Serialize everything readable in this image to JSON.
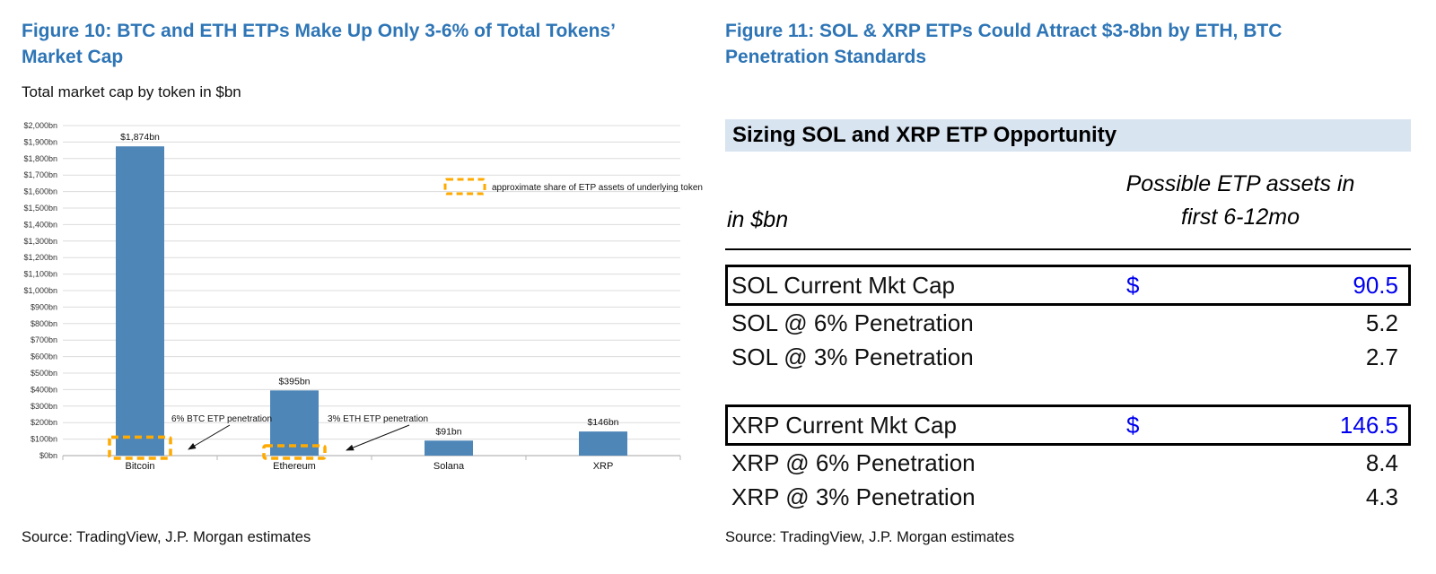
{
  "figure10": {
    "title_line1": "Figure 10: BTC and ETH ETPs Make Up Only 3-6% of Total Tokens’",
    "title_line2": "Market Cap",
    "subtitle": "Total market cap by token in $bn",
    "source": "Source: TradingView, J.P. Morgan estimates"
  },
  "figure11": {
    "title_line1": "Figure 11: SOL & XRP ETPs Could Attract $3-8bn by ETH, BTC",
    "title_line2": "Penetration Standards",
    "source": "Source: TradingView, J.P. Morgan estimates",
    "table": {
      "title": "Sizing SOL and XRP ETP Opportunity",
      "col_left_header": "in $bn",
      "col_right_header_line1": "Possible ETP assets in",
      "col_right_header_line2": "first 6-12mo",
      "sections": [
        {
          "rows": [
            {
              "label": "SOL Current Mkt Cap",
              "currency": "$",
              "value": "90.5",
              "boxed": true,
              "blue": true
            },
            {
              "label": "SOL @ 6% Penetration",
              "currency": "",
              "value": "5.2"
            },
            {
              "label": "SOL @ 3% Penetration",
              "currency": "",
              "value": "2.7"
            }
          ]
        },
        {
          "rows": [
            {
              "label": "XRP Current Mkt Cap",
              "currency": "$",
              "value": "146.5",
              "boxed": true,
              "blue": true
            },
            {
              "label": "XRP @ 6% Penetration",
              "currency": "",
              "value": "8.4"
            },
            {
              "label": "XRP @ 3% Penetration",
              "currency": "",
              "value": "4.3"
            }
          ]
        }
      ]
    }
  },
  "chart_data": [
    {
      "type": "bar",
      "title": "Total market cap by token in $bn",
      "categories": [
        "Bitcoin",
        "Ethereum",
        "Solana",
        "XRP"
      ],
      "values": [
        1874,
        395,
        91,
        146
      ],
      "bar_labels": [
        "$1,874bn",
        "$395bn",
        "$91bn",
        "$146bn"
      ],
      "xlabel": "",
      "ylabel": "",
      "ylim": [
        0,
        2000
      ],
      "ytick_step": 100,
      "ytick_prefix": "$",
      "ytick_suffix": "bn",
      "grid": true,
      "legend_label": "approximate share of ETP assets of underlying token",
      "legend_style": "dashed-box",
      "annotations": [
        {
          "text": "6% BTC ETP penetration",
          "category": "Bitcoin",
          "value_bn": 112
        },
        {
          "text": "3% ETH ETP penetration",
          "category": "Ethereum",
          "value_bn": 12
        }
      ],
      "colors": {
        "bar": "#4e86b8",
        "dashed_box": "#ffaa00",
        "grid": "#dcdcdc",
        "axis": "#b7b7b7"
      }
    },
    {
      "type": "table",
      "title": "Sizing SOL and XRP ETP Opportunity",
      "unit_header": "in $bn",
      "value_column_header": "Possible ETP assets in first 6-12mo",
      "rows": [
        [
          "SOL Current Mkt Cap",
          "$",
          90.5
        ],
        [
          "SOL @ 6% Penetration",
          "",
          5.2
        ],
        [
          "SOL @ 3% Penetration",
          "",
          2.7
        ],
        [
          "XRP Current Mkt Cap",
          "$",
          146.5
        ],
        [
          "XRP @ 6% Penetration",
          "",
          8.4
        ],
        [
          "XRP @ 3% Penetration",
          "",
          4.3
        ]
      ]
    }
  ]
}
